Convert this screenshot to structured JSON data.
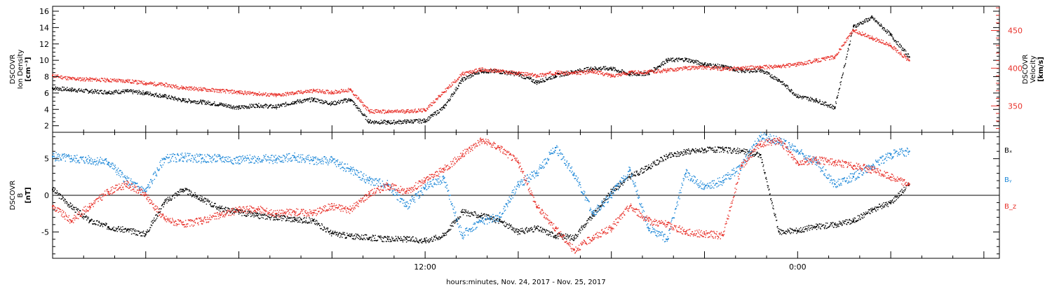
{
  "chart_data": [
    {
      "type": "scatter",
      "panel": "plasma",
      "ylabel_lines": [
        "DSCOVR",
        "Ion Density",
        "[cm⁻³]"
      ],
      "y2label_lines": [
        "DSCOVR",
        "Velocity",
        "[km/s]"
      ],
      "ylim": [
        1.2,
        16.6
      ],
      "y2lim": [
        315,
        482
      ],
      "yticks": [
        2,
        4,
        6,
        8,
        10,
        12,
        14,
        16
      ],
      "y2ticks": [
        350,
        400,
        450
      ],
      "colors": {
        "density": "#000000",
        "velocity": "#e8312a"
      },
      "series": [
        {
          "key": "density",
          "x": [
            0.0,
            0.6,
            1.2,
            1.8,
            2.4,
            3.0,
            3.6,
            4.2,
            4.8,
            5.4,
            6.0,
            6.6,
            7.2,
            7.8,
            8.4,
            9.0,
            9.6,
            10.2,
            10.8,
            11.4,
            12.0,
            12.6,
            13.2,
            13.8,
            14.4,
            15.0,
            15.6,
            16.2,
            16.8,
            17.4,
            18.0,
            18.6,
            19.2,
            19.8,
            20.4,
            21.0,
            21.6,
            22.2,
            22.8,
            23.4,
            24.0,
            24.6,
            25.2,
            25.8,
            26.4,
            27.0,
            27.6
          ],
          "values": [
            6.6,
            6.4,
            6.2,
            6.1,
            6.2,
            6.0,
            5.6,
            5.1,
            4.9,
            4.6,
            4.2,
            4.5,
            4.3,
            4.9,
            5.2,
            4.7,
            5.2,
            2.5,
            2.4,
            2.5,
            2.6,
            4.2,
            7.6,
            8.7,
            8.6,
            8.3,
            7.3,
            8.1,
            8.6,
            9.0,
            9.0,
            8.3,
            8.4,
            10.0,
            10.1,
            9.5,
            9.2,
            8.7,
            8.8,
            7.6,
            5.6,
            5.1,
            4.2,
            14.1,
            15.2,
            13.1,
            10.4
          ]
        },
        {
          "key": "velocity",
          "x": [
            0.0,
            0.6,
            1.2,
            1.8,
            2.4,
            3.0,
            3.6,
            4.2,
            4.8,
            5.4,
            6.0,
            6.6,
            7.2,
            7.8,
            8.4,
            9.0,
            9.6,
            10.2,
            10.8,
            11.4,
            12.0,
            12.6,
            13.2,
            13.8,
            14.4,
            15.0,
            15.6,
            16.2,
            16.8,
            17.4,
            18.0,
            18.6,
            19.2,
            19.8,
            20.4,
            21.0,
            21.6,
            22.2,
            22.8,
            23.4,
            24.0,
            24.6,
            25.2,
            25.8,
            26.4,
            27.0,
            27.6
          ],
          "values": [
            390,
            386,
            385,
            384,
            383,
            380,
            378,
            374,
            372,
            370,
            368,
            366,
            364,
            367,
            370,
            368,
            371,
            343,
            342,
            343,
            344,
            368,
            392,
            398,
            396,
            393,
            390,
            394,
            393,
            396,
            390,
            394,
            395,
            397,
            400,
            401,
            399,
            400,
            401,
            402,
            405,
            410,
            415,
            450,
            440,
            430,
            410
          ]
        }
      ]
    },
    {
      "type": "scatter",
      "panel": "magnetic",
      "ylabel_lines": [
        "DSCOVR",
        "B",
        "[nT]"
      ],
      "ylim": [
        -8.6,
        8.6
      ],
      "yticks": [
        -5,
        0,
        5
      ],
      "legend": [
        {
          "key": "bx",
          "label": "Bₓ",
          "color": "#000000"
        },
        {
          "key": "by",
          "label": "Bᵧ",
          "color": "#1e88d8"
        },
        {
          "key": "bz",
          "label": "B_z",
          "color": "#e8312a"
        }
      ],
      "xlim": [
        0,
        30.5
      ],
      "xticks": [
        12,
        24
      ],
      "xtick_labels": [
        "12:00",
        "0:00"
      ],
      "xlabel": "hours:minutes, Nov. 24, 2017 - Nov. 25, 2017",
      "series": [
        {
          "key": "bx",
          "x": [
            0.0,
            0.6,
            1.2,
            1.8,
            2.4,
            3.0,
            3.6,
            4.2,
            4.8,
            5.4,
            6.0,
            6.6,
            7.2,
            7.8,
            8.4,
            9.0,
            9.6,
            10.2,
            10.8,
            11.4,
            12.0,
            12.6,
            13.2,
            13.8,
            14.4,
            15.0,
            15.6,
            16.2,
            16.8,
            17.4,
            18.0,
            18.6,
            19.2,
            19.8,
            20.4,
            21.0,
            21.6,
            22.2,
            22.8,
            23.4,
            24.0,
            24.6,
            25.2,
            25.8,
            26.4,
            27.0,
            27.6
          ],
          "values": [
            0.8,
            -1.5,
            -3.5,
            -4.3,
            -4.8,
            -5.3,
            -1.0,
            0.8,
            -0.5,
            -1.8,
            -2.3,
            -2.8,
            -3.0,
            -3.3,
            -3.5,
            -5.2,
            -5.6,
            -5.8,
            -6.0,
            -6.0,
            -6.2,
            -5.5,
            -2.3,
            -2.8,
            -3.5,
            -5.0,
            -4.5,
            -5.5,
            -5.8,
            -2.8,
            0.5,
            2.5,
            3.8,
            5.3,
            5.9,
            6.2,
            6.2,
            6.0,
            5.5,
            -5.0,
            -4.8,
            -4.3,
            -4.0,
            -3.5,
            -2.0,
            -1.0,
            1.5
          ]
        },
        {
          "key": "by",
          "x": [
            0.0,
            0.6,
            1.2,
            1.8,
            2.4,
            3.0,
            3.6,
            4.2,
            4.8,
            5.4,
            6.0,
            6.6,
            7.2,
            7.8,
            8.4,
            9.0,
            9.6,
            10.2,
            10.8,
            11.4,
            12.0,
            12.6,
            13.2,
            13.8,
            14.4,
            15.0,
            15.6,
            16.2,
            16.8,
            17.4,
            18.0,
            18.6,
            19.2,
            19.8,
            20.4,
            21.0,
            21.6,
            22.2,
            22.8,
            23.4,
            24.0,
            24.6,
            25.2,
            25.8,
            26.4,
            27.0,
            27.6
          ],
          "values": [
            5.3,
            5.0,
            4.8,
            4.5,
            2.0,
            0.5,
            5.0,
            5.2,
            5.0,
            5.0,
            4.8,
            5.0,
            4.9,
            5.2,
            4.8,
            4.7,
            3.5,
            2.0,
            1.5,
            -1.5,
            1.0,
            2.3,
            -5.5,
            -3.5,
            -3.0,
            1.5,
            3.0,
            6.5,
            3.0,
            -2.5,
            0.0,
            3.5,
            -4.5,
            -6.0,
            3.0,
            1.0,
            2.0,
            4.0,
            8.0,
            7.5,
            6.0,
            4.5,
            1.5,
            2.5,
            4.0,
            5.5,
            6.0
          ]
        },
        {
          "key": "bz",
          "x": [
            0.0,
            0.6,
            1.2,
            1.8,
            2.4,
            3.0,
            3.6,
            4.2,
            4.8,
            5.4,
            6.0,
            6.6,
            7.2,
            7.8,
            8.4,
            9.0,
            9.6,
            10.2,
            10.8,
            11.4,
            12.0,
            12.6,
            13.2,
            13.8,
            14.4,
            15.0,
            15.6,
            16.2,
            16.8,
            17.4,
            18.0,
            18.6,
            19.2,
            19.8,
            20.4,
            21.0,
            21.6,
            22.2,
            22.8,
            23.4,
            24.0,
            24.6,
            25.2,
            25.8,
            26.4,
            27.0,
            27.6
          ],
          "values": [
            -1.5,
            -3.5,
            -1.5,
            0.5,
            1.5,
            0.0,
            -3.2,
            -4.0,
            -3.5,
            -2.7,
            -2.0,
            -1.9,
            -2.5,
            -2.3,
            -2.4,
            -1.5,
            -2.0,
            0.2,
            1.3,
            0.5,
            2.0,
            3.5,
            5.5,
            7.5,
            6.5,
            4.5,
            -1.5,
            -4.5,
            -7.5,
            -5.8,
            -4.5,
            -1.5,
            -3.5,
            -4.0,
            -5.0,
            -5.3,
            -5.5,
            4.0,
            7.0,
            7.5,
            4.5,
            4.8,
            4.5,
            4.0,
            3.5,
            2.5,
            1.5
          ]
        }
      ]
    }
  ]
}
